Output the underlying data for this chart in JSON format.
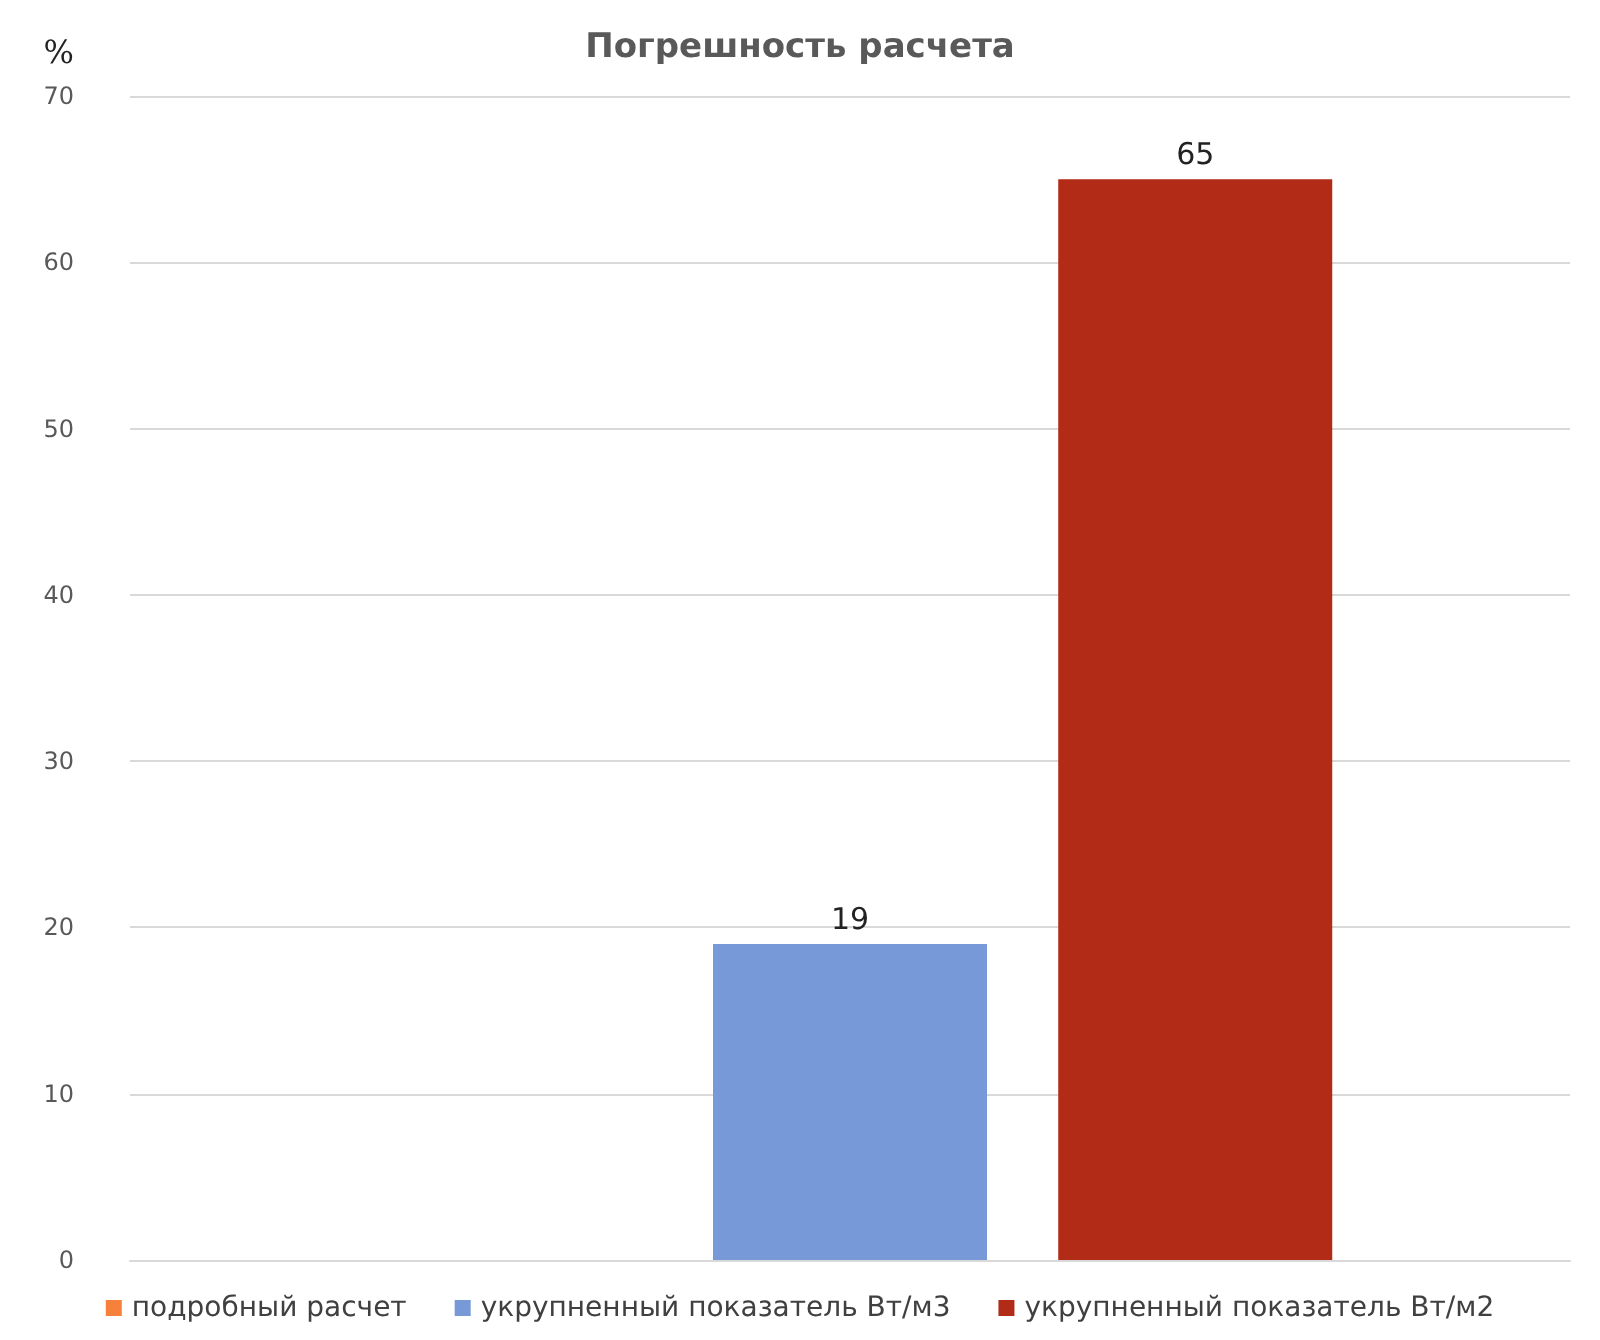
{
  "chart_data": {
    "type": "bar",
    "title": "Погрешность расчета",
    "ylabel": "%",
    "categories": [
      null
    ],
    "series": [
      {
        "name": "подробный расчет",
        "color": "#f5813b",
        "values": [
          0
        ],
        "value_labels": [
          null
        ]
      },
      {
        "name": "укрупненный показатель Вт/м3",
        "color": "#7799d8",
        "values": [
          19
        ],
        "value_labels": [
          "19"
        ]
      },
      {
        "name": "укрупненный показатель Вт/м2",
        "color": "#b22b17",
        "values": [
          65
        ],
        "value_labels": [
          "65"
        ]
      }
    ],
    "ylim": [
      0,
      70
    ],
    "yticks": [
      0,
      10,
      20,
      30,
      40,
      50,
      60,
      70
    ],
    "grid": "y",
    "legend": "bottom"
  }
}
